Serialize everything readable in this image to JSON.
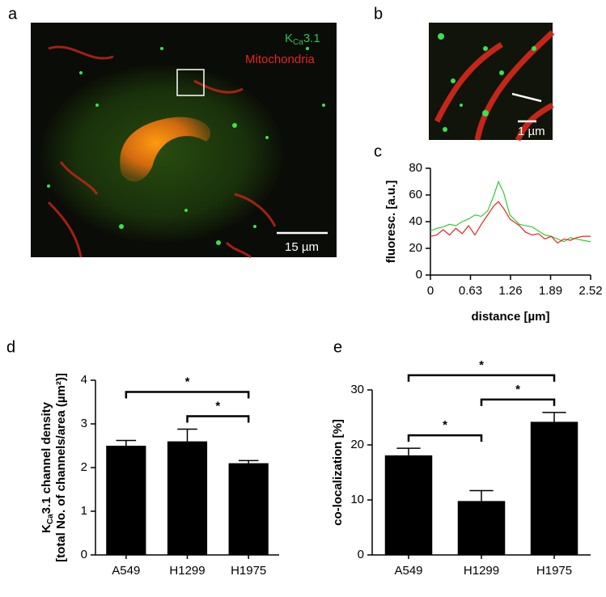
{
  "images": {
    "a": {
      "label": "a",
      "legend": [
        {
          "parts": [
            "K",
            "Ca",
            "3.1"
          ],
          "color": "#2fc24a"
        },
        {
          "parts": [
            "Mitochondria"
          ],
          "color": "#e8231e"
        }
      ],
      "scale_bar": "15 µm"
    },
    "b": {
      "label": "b",
      "scale_bar": "1 µm"
    }
  },
  "chart_data": [
    {
      "type": "line",
      "panel_label": "c",
      "xlabel": "distance [µm]",
      "ylabel": "fluoresc. [a.u.]",
      "x": [
        0,
        0.1,
        0.2,
        0.3,
        0.4,
        0.5,
        0.6,
        0.7,
        0.8,
        0.9,
        1.0,
        1.07,
        1.15,
        1.25,
        1.4,
        1.5,
        1.6,
        1.7,
        1.8,
        1.9,
        2.0,
        2.1,
        2.2,
        2.3,
        2.4,
        2.52
      ],
      "series": [
        {
          "color": "#33cc33",
          "values": [
            33,
            35,
            36,
            38,
            37,
            40,
            42,
            45,
            44,
            48,
            60,
            70,
            62,
            45,
            38,
            37,
            36,
            33,
            30,
            29,
            27,
            25,
            28,
            27,
            26,
            25
          ]
        },
        {
          "color": "#e8231e",
          "values": [
            29,
            30,
            34,
            30,
            35,
            31,
            37,
            30,
            38,
            45,
            52,
            55,
            50,
            42,
            37,
            32,
            30,
            31,
            27,
            29,
            24,
            27,
            26,
            28,
            29,
            29
          ]
        }
      ],
      "xlim": [
        0,
        2.52
      ],
      "xticks": [
        0,
        0.63,
        1.26,
        1.89,
        2.52
      ],
      "ylim": [
        0,
        80
      ],
      "yticks": [
        0,
        20,
        40,
        60,
        80
      ]
    },
    {
      "type": "bar",
      "panel_label": "d",
      "ylabel_parts": [
        "K",
        "Ca",
        "3.1 channel density"
      ],
      "ylabel2": "[total No. of channels/area (µm²)]",
      "categories": [
        "A549",
        "H1299",
        "H1975"
      ],
      "values": [
        2.5,
        2.6,
        2.1
      ],
      "errors": [
        0.12,
        0.28,
        0.06
      ],
      "color": "#000000",
      "ylim": [
        0,
        4
      ],
      "yticks": [
        0,
        1,
        2,
        3,
        4
      ],
      "significance": [
        {
          "from": "A549",
          "to": "H1975",
          "label": "*"
        },
        {
          "from": "H1299",
          "to": "H1975",
          "label": "*"
        }
      ]
    },
    {
      "type": "bar",
      "panel_label": "e",
      "ylabel": "co-localization [%]",
      "categories": [
        "A549",
        "H1299",
        "H1975"
      ],
      "values": [
        18.1,
        9.8,
        24.2
      ],
      "errors": [
        1.3,
        1.9,
        1.7
      ],
      "color": "#000000",
      "ylim": [
        0,
        30
      ],
      "yticks": [
        0,
        10,
        20,
        30
      ],
      "significance": [
        {
          "from": "A549",
          "to": "H1975",
          "label": "*"
        },
        {
          "from": "A549",
          "to": "H1299",
          "label": "*"
        },
        {
          "from": "H1299",
          "to": "H1975",
          "label": "*"
        }
      ]
    }
  ]
}
